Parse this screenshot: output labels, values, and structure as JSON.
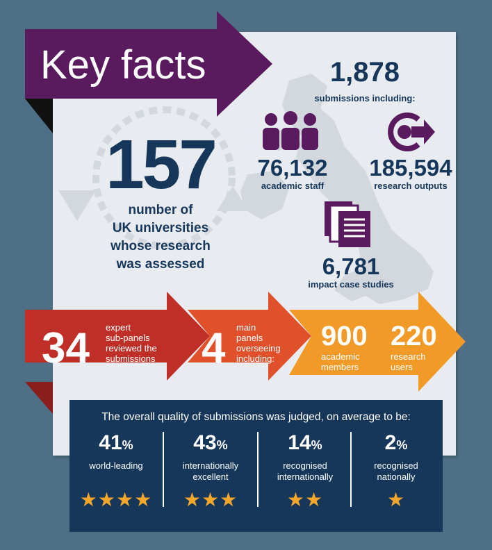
{
  "title": "Key facts",
  "universities": {
    "value": "157",
    "label_lines": [
      "number of",
      "UK universities",
      "whose research",
      "was assessed"
    ]
  },
  "submissions": {
    "value": "1,878",
    "label": "submissions including:"
  },
  "staff": {
    "value": "76,132",
    "label": "academic staff",
    "icon": "people-icon"
  },
  "outputs": {
    "value": "185,594",
    "label": "research outputs",
    "icon": "output-cycle-icon"
  },
  "impact": {
    "value": "6,781",
    "label": "impact case studies",
    "icon": "documents-icon"
  },
  "subpanels": {
    "value": "34",
    "label_lines": [
      "expert",
      "sub-panels",
      "reviewed the",
      "submissions"
    ]
  },
  "main_panels": {
    "value": "4",
    "label_lines": [
      "main",
      "panels",
      "overseeing",
      "including:"
    ]
  },
  "academic_members": {
    "value": "900",
    "label_lines": [
      "academic",
      "members"
    ]
  },
  "research_users": {
    "value": "220",
    "label_lines": [
      "research",
      "users"
    ]
  },
  "quality": {
    "heading": "The overall quality of submissions was judged, on average to be:",
    "items": [
      {
        "value": "41",
        "unit": "%",
        "label_lines": [
          "world-leading",
          ""
        ],
        "stars": "★★★★"
      },
      {
        "value": "43",
        "unit": "%",
        "label_lines": [
          "internationally",
          "excellent"
        ],
        "stars": "★★★"
      },
      {
        "value": "14",
        "unit": "%",
        "label_lines": [
          "recognised",
          "internationally"
        ],
        "stars": "★★"
      },
      {
        "value": "2",
        "unit": "%",
        "label_lines": [
          "recognised",
          "nationally"
        ],
        "stars": "★"
      }
    ]
  },
  "colors": {
    "background": "#4e6f86",
    "purple": "#5a1b5e",
    "navy": "#16375a",
    "red": "#bf2e27",
    "orange_red": "#e0502b",
    "orange": "#f19a28",
    "star": "#f3a62a"
  }
}
